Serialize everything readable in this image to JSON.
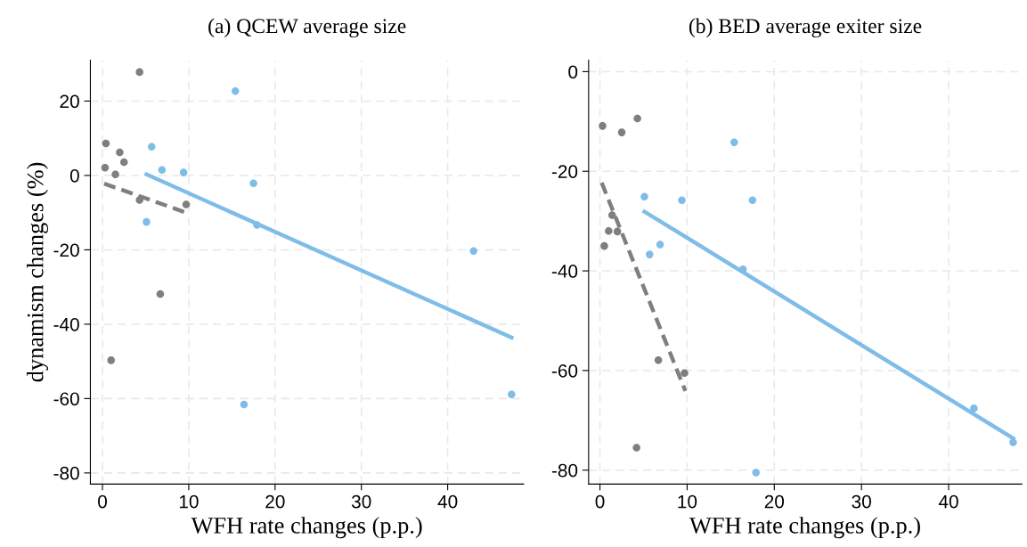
{
  "chart_data": [
    {
      "type": "scatter",
      "title": "(a) QCEW average size",
      "xlabel": "WFH rate changes (p.p.)",
      "ylabel": "dynamism changes (%)",
      "xlim": [
        -1.4,
        48.8
      ],
      "xticks": [
        0,
        10,
        20,
        30,
        40
      ],
      "ylim": [
        -83,
        31
      ],
      "yticks": [
        -80,
        -60,
        -40,
        -20,
        0,
        20
      ],
      "grid": true,
      "series": [
        {
          "marker": "circle",
          "color": "#7f7f7f",
          "x": [
            4.3,
            0.4,
            2.0,
            2.5,
            0.3,
            1.5,
            4.3,
            9.7,
            6.7,
            1.0
          ],
          "values": [
            27.8,
            8.6,
            6.2,
            3.6,
            2.1,
            0.3,
            -6.6,
            -7.8,
            -31.9,
            -49.7
          ]
        },
        {
          "marker": "circle",
          "color": "#7fbde8",
          "x": [
            15.4,
            5.7,
            6.9,
            9.4,
            17.5,
            5.1,
            17.9,
            43.0,
            16.4,
            47.4
          ],
          "values": [
            22.7,
            7.7,
            1.5,
            0.8,
            -2.1,
            -12.5,
            -13.3,
            -20.3,
            -61.6,
            -58.9
          ]
        },
        {
          "type": "line",
          "line_style": "dashed",
          "color": "#7f7f7f",
          "x": [
            0.2,
            9.7
          ],
          "values": [
            -2.2,
            -10.0
          ]
        },
        {
          "type": "line",
          "line_style": "solid",
          "color": "#7fbde8",
          "x": [
            5.1,
            47.4
          ],
          "values": [
            0.3,
            -43.6
          ]
        }
      ]
    },
    {
      "type": "scatter",
      "title": "(b) BED average exiter size",
      "xlabel": "WFH rate changes (p.p.)",
      "xlim": [
        -1.3,
        48.4
      ],
      "xticks": [
        0,
        10,
        20,
        30,
        40
      ],
      "ylim": [
        -82.8,
        2.3
      ],
      "yticks": [
        -80,
        -60,
        -40,
        -20,
        0
      ],
      "grid": true,
      "series": [
        {
          "marker": "circle",
          "color": "#7f7f7f",
          "x": [
            0.3,
            4.3,
            2.5,
            1.4,
            1.0,
            2.0,
            0.5,
            6.7,
            9.7,
            4.2
          ],
          "values": [
            -10.9,
            -9.4,
            -12.2,
            -28.8,
            -32.0,
            -32.1,
            -35.0,
            -57.9,
            -60.5,
            -75.5
          ]
        },
        {
          "marker": "circle",
          "color": "#7fbde8",
          "x": [
            15.4,
            5.1,
            9.4,
            17.5,
            6.9,
            5.7,
            16.4,
            42.9,
            47.4,
            17.9
          ],
          "values": [
            -14.2,
            -25.1,
            -25.8,
            -25.8,
            -34.7,
            -36.7,
            -39.7,
            -67.6,
            -74.4,
            -80.5
          ]
        },
        {
          "type": "line",
          "line_style": "dashed",
          "color": "#7f7f7f",
          "x": [
            0.2,
            9.8
          ],
          "values": [
            -22.3,
            -64.1
          ]
        },
        {
          "type": "line",
          "line_style": "solid",
          "color": "#7fbde8",
          "x": [
            5.1,
            47.4
          ],
          "values": [
            -28.1,
            -73.6
          ]
        }
      ]
    }
  ]
}
